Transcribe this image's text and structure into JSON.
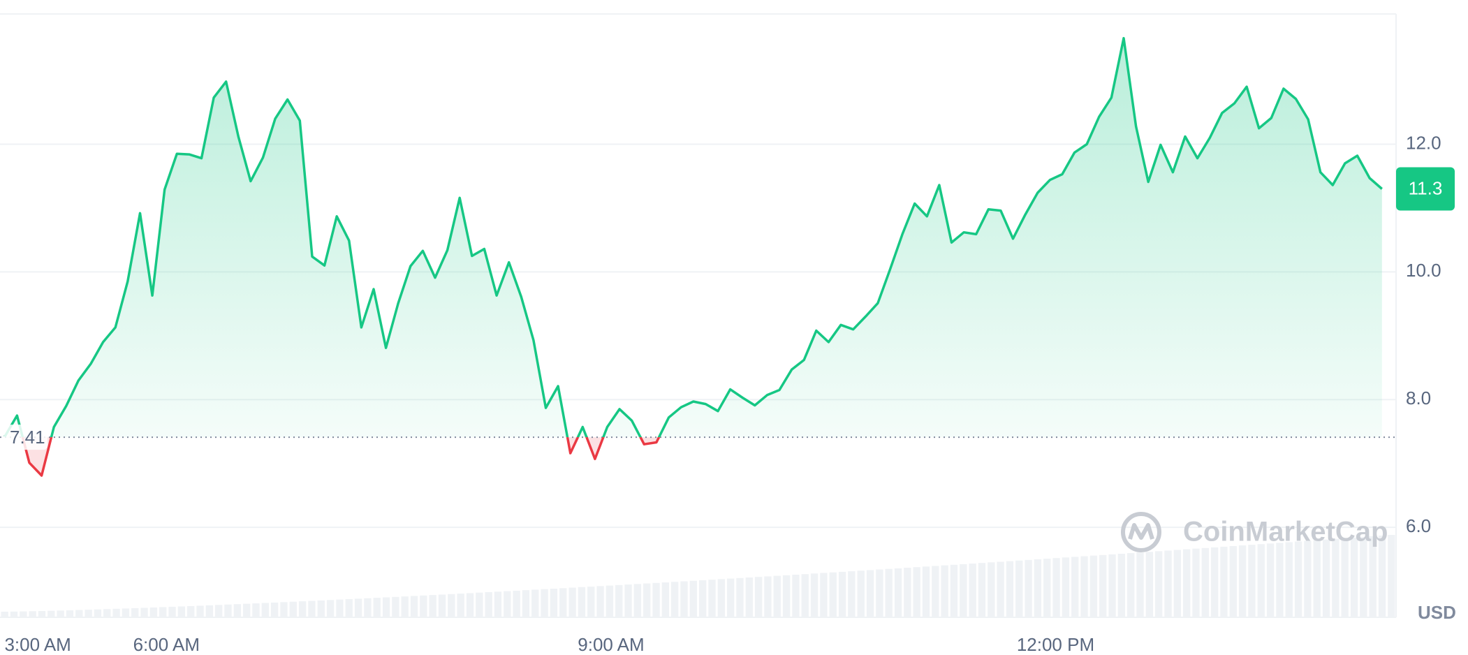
{
  "chart_data": {
    "type": "line",
    "currency": "USD",
    "watermark": "CoinMarketCap",
    "baseline": {
      "value": 7.41,
      "label": "7.41"
    },
    "current_price": 11.3,
    "series": [
      {
        "color": "#16c784",
        "below_color": "#ea3943",
        "values": [
          7.42,
          7.75,
          7.01,
          6.81,
          7.57,
          7.9,
          8.3,
          8.56,
          8.9,
          9.13,
          9.85,
          10.92,
          9.63,
          11.29,
          11.85,
          11.84,
          11.78,
          12.73,
          12.98,
          12.12,
          11.42,
          11.79,
          12.4,
          12.7,
          12.37,
          10.24,
          10.1,
          10.87,
          10.49,
          9.13,
          9.73,
          8.81,
          9.51,
          10.09,
          10.33,
          9.91,
          10.34,
          11.16,
          10.25,
          10.36,
          9.63,
          10.15,
          9.61,
          8.93,
          7.87,
          8.21,
          7.16,
          7.57,
          7.07,
          7.57,
          7.85,
          7.67,
          7.3,
          7.33,
          7.72,
          7.88,
          7.97,
          7.93,
          7.82,
          8.16,
          8.03,
          7.91,
          8.07,
          8.15,
          8.47,
          8.62,
          9.08,
          8.9,
          9.17,
          9.1,
          9.3,
          9.51,
          10.04,
          10.59,
          11.07,
          10.87,
          11.36,
          10.46,
          10.62,
          10.59,
          10.98,
          10.96,
          10.52,
          10.9,
          11.24,
          11.44,
          11.53,
          11.87,
          12.0,
          12.43,
          12.73,
          13.66,
          12.28,
          11.41,
          11.99,
          11.56,
          12.12,
          11.78,
          12.1,
          12.49,
          12.64,
          12.9,
          12.25,
          12.41,
          12.87,
          12.71,
          12.39,
          11.56,
          11.36,
          11.7,
          11.82,
          11.47,
          11.3
        ]
      }
    ],
    "xlim": [
      -0.385,
      113.15
    ],
    "xticks": [
      {
        "value": 2.69,
        "label": "3:00 AM"
      },
      {
        "value": 13.15,
        "label": "6:00 AM"
      },
      {
        "value": 49.31,
        "label": "9:00 AM"
      },
      {
        "value": 85.46,
        "label": "12:00 PM"
      }
    ],
    "ylim": [
      4.59,
      14.04
    ],
    "yticks": [
      {
        "value": 6,
        "label": "6.0"
      },
      {
        "value": 8,
        "label": "8.0"
      },
      {
        "value": 10,
        "label": "10.0"
      },
      {
        "value": 12,
        "label": "12.0"
      }
    ],
    "grid": true
  }
}
